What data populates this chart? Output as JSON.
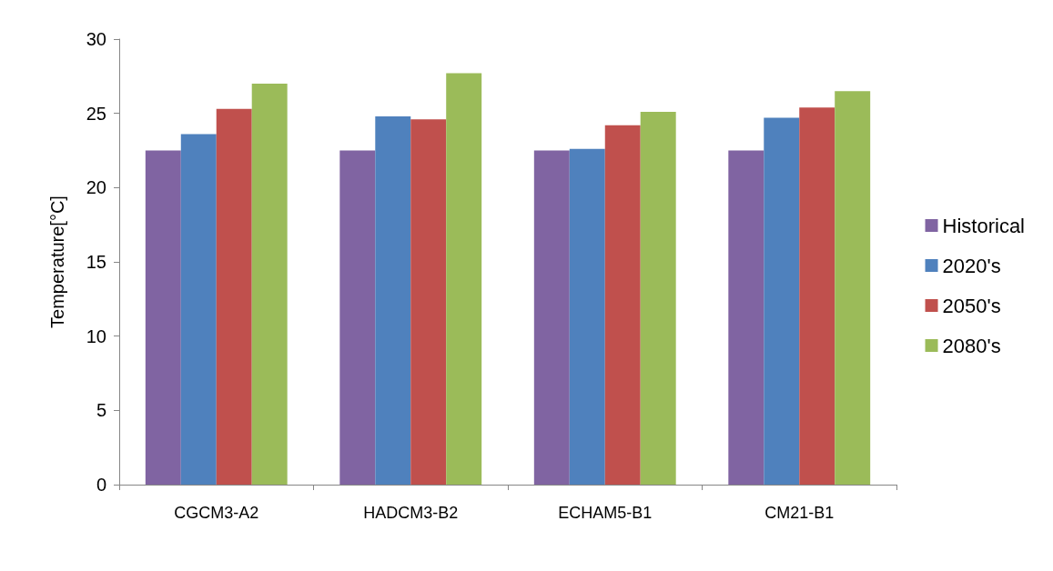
{
  "chart_data": {
    "type": "bar",
    "ylabel": "Temperature[°C]",
    "categories": [
      "CGCM3-A2",
      "HADCM3-B2",
      "ECHAM5-B1",
      "CM21-B1"
    ],
    "series": [
      {
        "name": "Historical",
        "color": "#8064a2",
        "values": [
          22.5,
          22.5,
          22.5,
          22.5
        ]
      },
      {
        "name": "2020's",
        "color": "#4f81bd",
        "values": [
          23.6,
          24.8,
          22.6,
          24.7
        ]
      },
      {
        "name": "2050's",
        "color": "#c0504d",
        "values": [
          25.3,
          24.6,
          24.2,
          25.4
        ]
      },
      {
        "name": "2080's",
        "color": "#9bbb59",
        "values": [
          27.0,
          27.7,
          25.1,
          26.5
        ]
      }
    ],
    "ylim": [
      0,
      30
    ],
    "yticks": [
      0,
      5,
      10,
      15,
      20,
      25,
      30
    ],
    "grid": false,
    "legend": "right"
  }
}
